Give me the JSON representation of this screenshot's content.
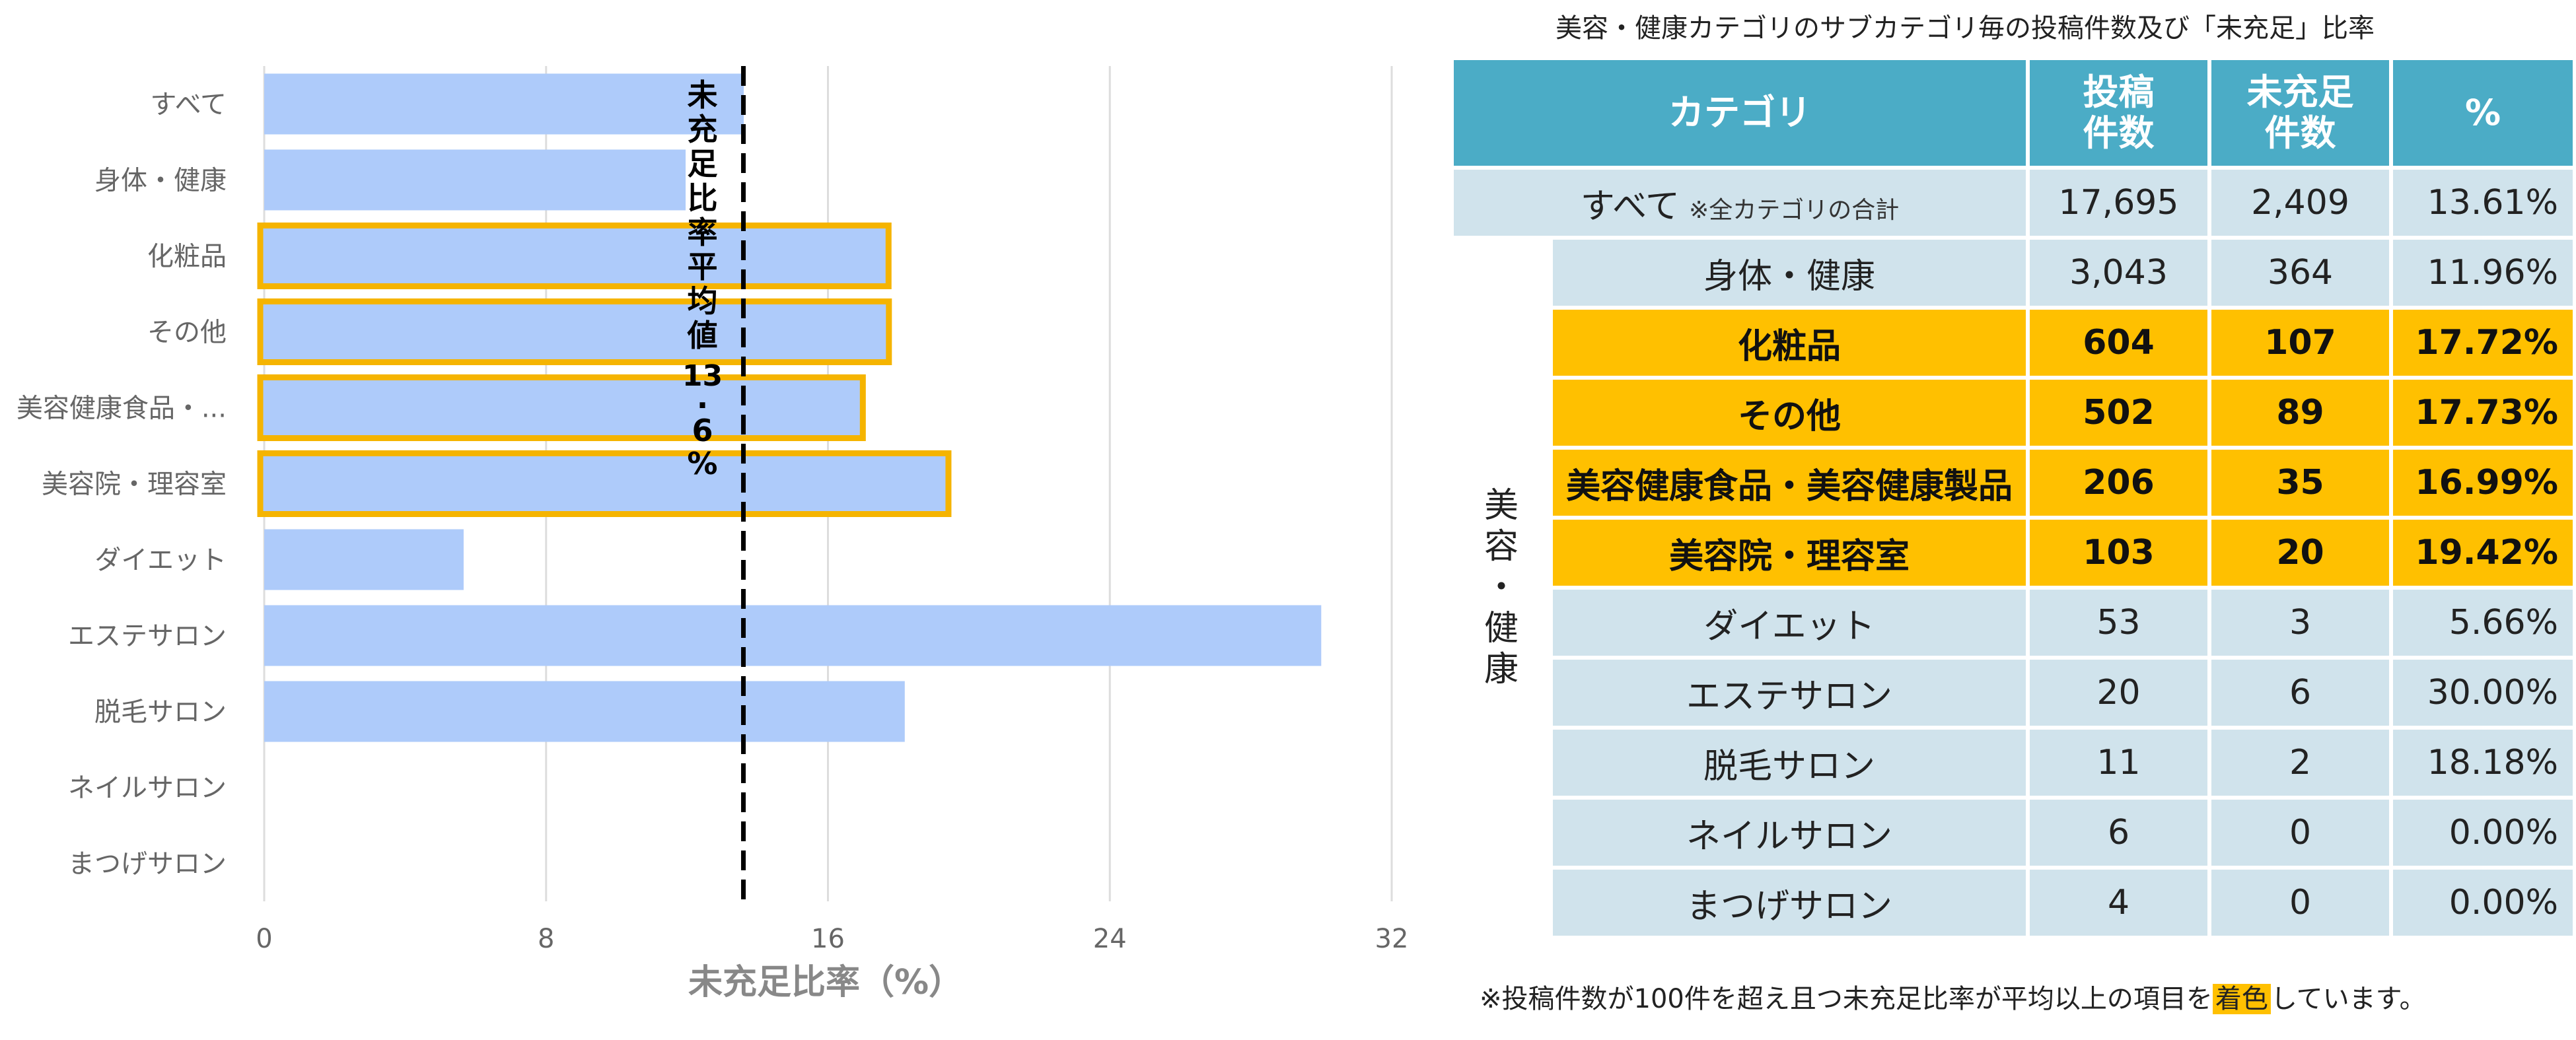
{
  "chart_data": {
    "type": "bar",
    "orientation": "horizontal",
    "categories": [
      "すべて",
      "身体・健康",
      "化粧品",
      "その他",
      "美容健康食品・...",
      "美容院・理容室",
      "ダイエット",
      "エステサロン",
      "脱毛サロン",
      "ネイルサロン",
      "まつげサロン"
    ],
    "values": [
      13.61,
      11.96,
      17.72,
      17.73,
      16.99,
      19.42,
      5.66,
      30.0,
      18.18,
      0.0,
      0.0
    ],
    "highlighted": [
      false,
      false,
      true,
      true,
      true,
      true,
      false,
      false,
      false,
      false,
      false
    ],
    "xlabel": "未充足比率（%）",
    "xlim": [
      0,
      32
    ],
    "xticks": [
      "0",
      "8",
      "16",
      "24",
      "32"
    ],
    "average_value": 13.6,
    "average_label_chars": [
      "未",
      "充",
      "足",
      "比",
      "率",
      "平",
      "均",
      "値",
      "13",
      ".",
      "6",
      "%"
    ],
    "colors": {
      "bar": "#aecbfa",
      "highlight_border": "#f5b400",
      "avg_line": "#000000",
      "grid": "#dddddd"
    }
  },
  "table": {
    "caption": "美容・健康カテゴリのサブカテゴリ毎の投稿件数及び「未充足」比率",
    "headers": {
      "category": "カテゴリ",
      "posts": [
        "投稿",
        "件数"
      ],
      "unfulfilled": [
        "未充足",
        "件数"
      ],
      "pct": "%"
    },
    "all_row": {
      "label": "すべて",
      "note": "※全カテゴリの合計",
      "posts": "17,695",
      "unfulfilled": "2,409",
      "pct": "13.61%"
    },
    "group_label_chars": [
      "美",
      "容",
      "・",
      "健",
      "康"
    ],
    "rows": [
      {
        "label": "身体・健康",
        "posts": "3,043",
        "unfulfilled": "364",
        "pct": "11.96%",
        "highlight": false
      },
      {
        "label": "化粧品",
        "posts": "604",
        "unfulfilled": "107",
        "pct": "17.72%",
        "highlight": true
      },
      {
        "label": "その他",
        "posts": "502",
        "unfulfilled": "89",
        "pct": "17.73%",
        "highlight": true
      },
      {
        "label": "美容健康食品・美容健康製品",
        "posts": "206",
        "unfulfilled": "35",
        "pct": "16.99%",
        "highlight": true
      },
      {
        "label": "美容院・理容室",
        "posts": "103",
        "unfulfilled": "20",
        "pct": "19.42%",
        "highlight": true
      },
      {
        "label": "ダイエット",
        "posts": "53",
        "unfulfilled": "3",
        "pct": "5.66%",
        "highlight": false
      },
      {
        "label": "エステサロン",
        "posts": "20",
        "unfulfilled": "6",
        "pct": "30.00%",
        "highlight": false
      },
      {
        "label": "脱毛サロン",
        "posts": "11",
        "unfulfilled": "2",
        "pct": "18.18%",
        "highlight": false
      },
      {
        "label": "ネイルサロン",
        "posts": "6",
        "unfulfilled": "0",
        "pct": "0.00%",
        "highlight": false
      },
      {
        "label": "まつげサロン",
        "posts": "4",
        "unfulfilled": "0",
        "pct": "0.00%",
        "highlight": false
      }
    ],
    "footnote": {
      "before": "※投稿件数が100件を超え且つ未充足比率が平均以上の項目を",
      "highlight": "着色",
      "after": "しています。"
    }
  }
}
